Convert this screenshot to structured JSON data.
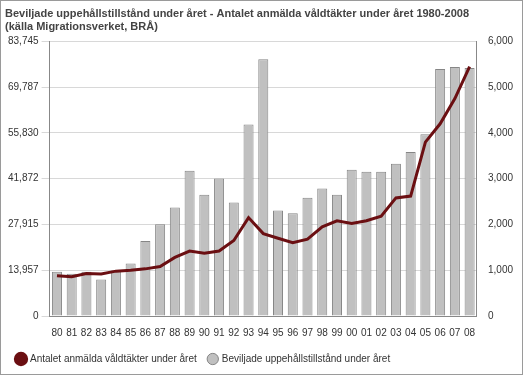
{
  "chart_data": {
    "type": "bar",
    "title": "Beviljade uppehållstillstånd under året - Antalet anmälda våldtäkter under året 1980-2008",
    "subtitle": "(källa Migrationsverket, BRÅ)",
    "categories": [
      "80",
      "81",
      "82",
      "83",
      "84",
      "85",
      "86",
      "87",
      "88",
      "89",
      "90",
      "91",
      "92",
      "93",
      "94",
      "95",
      "96",
      "97",
      "98",
      "99",
      "00",
      "01",
      "02",
      "03",
      "04",
      "05",
      "06",
      "07",
      "08"
    ],
    "series": [
      {
        "name": "Beviljade uppehållstillstånd under året",
        "type": "bar",
        "color": "#c0c0c0",
        "values": [
          13500,
          12900,
          13500,
          11100,
          13900,
          16000,
          22900,
          28000,
          33100,
          44300,
          37000,
          41900,
          34600,
          58400,
          78300,
          32200,
          31300,
          36100,
          38900,
          37000,
          44600,
          44000,
          44000,
          46400,
          50000,
          55400,
          75300,
          75900,
          75600
        ]
      },
      {
        "name": "Antalet anmälda våldtäkter under året",
        "type": "line",
        "axis": "y2",
        "color": "#6b0f12",
        "marker": "none",
        "line_style": "solid",
        "values": [
          880,
          860,
          930,
          920,
          980,
          1000,
          1030,
          1080,
          1280,
          1420,
          1370,
          1420,
          1650,
          2150,
          1800,
          1700,
          1600,
          1680,
          1950,
          2080,
          2020,
          2080,
          2180,
          2580,
          2620,
          3800,
          4200,
          4750,
          5450
        ]
      }
    ],
    "ylim": [
      0,
      83745
    ],
    "yticks": [
      0,
      {
        "value": 13957,
        "label": "13,957"
      },
      {
        "value": 27915,
        "label": "27,915"
      },
      {
        "value": 41872,
        "label": "41,872"
      },
      {
        "value": 55830,
        "label": "55,830"
      },
      {
        "value": 69787,
        "label": "69,787"
      },
      {
        "value": 83745,
        "label": "83,745"
      }
    ],
    "y2lim": [
      0,
      6000
    ],
    "y2ticks": [
      0,
      {
        "value": 1000,
        "label": "1,000"
      },
      {
        "value": 2000,
        "label": "2,000"
      },
      {
        "value": 3000,
        "label": "3,000"
      },
      {
        "value": 4000,
        "label": "4,000"
      },
      {
        "value": 5000,
        "label": "5,000"
      },
      {
        "value": 6000,
        "label": "6,000"
      }
    ],
    "grid": true,
    "legend": "bottom"
  }
}
